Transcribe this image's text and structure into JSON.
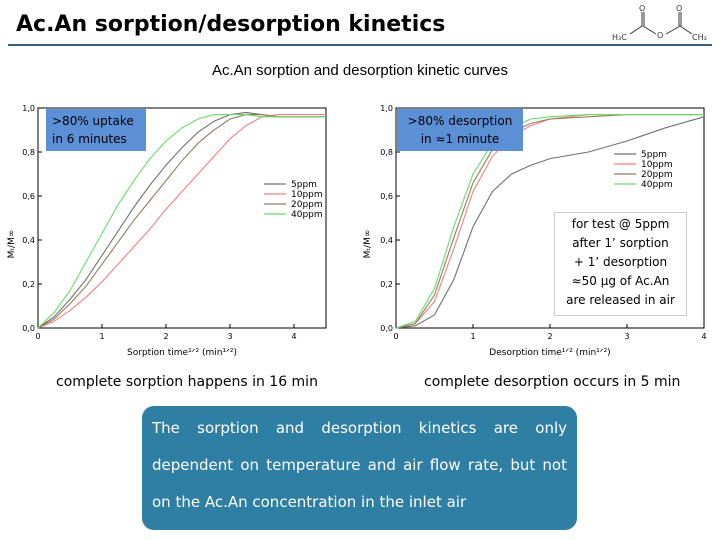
{
  "slide": {
    "title": "Ac.An sorption/desorption kinetics",
    "subtitle": "Ac.An sorption and desorption kinetic curves",
    "molecule_labels": [
      "H₃C",
      "O",
      "O",
      "O",
      "CH₃"
    ]
  },
  "callouts": {
    "left": ">80% uptake in 6 minutes",
    "right": ">80% desorption in ≈1 minute"
  },
  "note": [
    "for test @ 5ppm",
    "after 1’ sorption",
    "+ 1’ desorption",
    "≈50 µg of Ac.An",
    "are released in air"
  ],
  "captions": {
    "left": "complete sorption happens in 16 min",
    "right": "complete desorption occurs in 5 min"
  },
  "conclusion": "The sorption and desorption kinetics are only dependent on temperature and air flow rate, but not on the Ac.An concentration in the inlet air",
  "colors": {
    "title_rule": "#3a5a8c",
    "callout": "#5b8fd6",
    "conclusion_bg": "#2e7fa3",
    "series": [
      "#707070",
      "#f08080",
      "#9a7a5a",
      "#66dd66"
    ]
  },
  "chart_data": [
    {
      "type": "line",
      "xlabel": "Sorption time¹ᐟ² (min¹ᐟ²)",
      "ylabel": "Mₜ/M∞",
      "xlim": [
        0,
        4.5
      ],
      "ylim": [
        0,
        1.0
      ],
      "xticks": [
        0,
        1,
        2,
        3,
        4
      ],
      "yticks": [
        0.0,
        0.2,
        0.4,
        0.6,
        0.8,
        1.0
      ],
      "xtick_labels": [
        "0",
        "1",
        "2",
        "3",
        "4"
      ],
      "ytick_labels": [
        "0,0",
        "0,2",
        "0,4",
        "0,6",
        "0,8",
        "1,0"
      ],
      "legend_position": "center-right",
      "series": [
        {
          "name": "5ppm",
          "x": [
            0,
            0.25,
            0.5,
            0.75,
            1,
            1.25,
            1.5,
            1.75,
            2,
            2.25,
            2.5,
            2.75,
            3,
            3.25,
            3.5,
            3.75,
            4,
            4.5
          ],
          "y": [
            0,
            0.05,
            0.13,
            0.22,
            0.33,
            0.44,
            0.55,
            0.65,
            0.74,
            0.82,
            0.89,
            0.94,
            0.97,
            0.98,
            0.97,
            0.96,
            0.96,
            0.96
          ]
        },
        {
          "name": "10ppm",
          "x": [
            0,
            0.25,
            0.5,
            0.75,
            1,
            1.25,
            1.5,
            1.75,
            2,
            2.25,
            2.5,
            2.75,
            3,
            3.25,
            3.5,
            3.75,
            4,
            4.5
          ],
          "y": [
            0,
            0.03,
            0.08,
            0.14,
            0.21,
            0.29,
            0.37,
            0.45,
            0.54,
            0.62,
            0.7,
            0.78,
            0.86,
            0.92,
            0.96,
            0.97,
            0.97,
            0.97
          ]
        },
        {
          "name": "20ppm",
          "x": [
            0,
            0.25,
            0.5,
            0.75,
            1,
            1.25,
            1.5,
            1.75,
            2,
            2.25,
            2.5,
            2.75,
            3,
            3.25,
            3.5,
            3.75,
            4,
            4.5
          ],
          "y": [
            0,
            0.04,
            0.11,
            0.19,
            0.29,
            0.39,
            0.49,
            0.58,
            0.67,
            0.76,
            0.84,
            0.9,
            0.95,
            0.97,
            0.97,
            0.96,
            0.96,
            0.96
          ]
        },
        {
          "name": "40ppm",
          "x": [
            0,
            0.25,
            0.5,
            0.75,
            1,
            1.25,
            1.5,
            1.75,
            2,
            2.25,
            2.5,
            2.75,
            3,
            3.25,
            3.5,
            3.75,
            4,
            4.5
          ],
          "y": [
            0,
            0.07,
            0.17,
            0.3,
            0.43,
            0.56,
            0.67,
            0.77,
            0.85,
            0.91,
            0.95,
            0.97,
            0.97,
            0.97,
            0.96,
            0.96,
            0.96,
            0.96
          ]
        }
      ]
    },
    {
      "type": "line",
      "xlabel": "Desorption time¹ᐟ² (min¹ᐟ²)",
      "ylabel": "Mₜ/M∞",
      "xlim": [
        0,
        4
      ],
      "ylim": [
        0,
        1.0
      ],
      "xticks": [
        0,
        1,
        2,
        3,
        4
      ],
      "yticks": [
        0.0,
        0.2,
        0.4,
        0.6,
        0.8,
        1.0
      ],
      "xtick_labels": [
        "0",
        "1",
        "2",
        "3",
        "4"
      ],
      "ytick_labels": [
        "0,0",
        "0,2",
        "0,4",
        "0,6",
        "0,8",
        "1,0"
      ],
      "legend_position": "top-right",
      "series": [
        {
          "name": "5ppm",
          "x": [
            0,
            0.25,
            0.5,
            0.75,
            1,
            1.25,
            1.5,
            1.75,
            2,
            2.5,
            3,
            3.5,
            4
          ],
          "y": [
            0,
            0.01,
            0.06,
            0.22,
            0.46,
            0.62,
            0.7,
            0.74,
            0.77,
            0.8,
            0.85,
            0.91,
            0.96
          ]
        },
        {
          "name": "10ppm",
          "x": [
            0,
            0.25,
            0.5,
            0.75,
            1,
            1.25,
            1.5,
            1.75,
            2,
            2.5,
            3,
            3.5,
            4
          ],
          "y": [
            0,
            0.02,
            0.12,
            0.36,
            0.62,
            0.78,
            0.87,
            0.92,
            0.95,
            0.97,
            0.97,
            0.97,
            0.97
          ]
        },
        {
          "name": "20ppm",
          "x": [
            0,
            0.25,
            0.5,
            0.75,
            1,
            1.25,
            1.5,
            1.75,
            2,
            2.5,
            3,
            3.5,
            4
          ],
          "y": [
            0,
            0.02,
            0.15,
            0.41,
            0.66,
            0.81,
            0.89,
            0.93,
            0.95,
            0.96,
            0.97,
            0.97,
            0.97
          ]
        },
        {
          "name": "40ppm",
          "x": [
            0,
            0.25,
            0.5,
            0.75,
            1,
            1.25,
            1.5,
            1.75,
            2,
            2.5,
            3,
            3.5,
            4
          ],
          "y": [
            0,
            0.03,
            0.18,
            0.46,
            0.7,
            0.84,
            0.91,
            0.95,
            0.96,
            0.97,
            0.97,
            0.97,
            0.97
          ]
        }
      ]
    }
  ]
}
